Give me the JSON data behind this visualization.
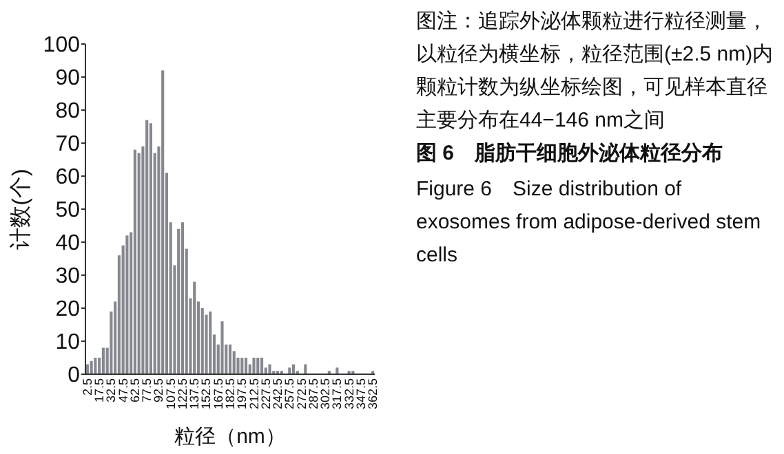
{
  "chart_data": {
    "type": "bar",
    "ylabel": "计数(个)",
    "xlabel": "粒径（nm）",
    "categories": [
      "2.5",
      null,
      null,
      "17.5",
      null,
      null,
      "32.5",
      null,
      null,
      "47.5",
      null,
      null,
      "62.5",
      null,
      null,
      "77.5",
      null,
      null,
      "92.5",
      null,
      null,
      "107.5",
      null,
      null,
      "122.5",
      null,
      null,
      "137.5",
      null,
      null,
      "152.5",
      null,
      null,
      "167.5",
      null,
      null,
      "182.5",
      null,
      null,
      "197.5",
      null,
      null,
      "212.5",
      null,
      null,
      "227.5",
      null,
      null,
      "242.5",
      null,
      null,
      "257.5",
      null,
      null,
      "272.5",
      null,
      null,
      "287.5",
      null,
      null,
      "302.5",
      null,
      null,
      "317.5",
      null,
      null,
      "332.5",
      null,
      null,
      "347.5",
      null,
      null,
      "362.5"
    ],
    "values": [
      3,
      4,
      5,
      5,
      8,
      8,
      19,
      22,
      36,
      39,
      42,
      43,
      68,
      67,
      69,
      77,
      76,
      67,
      69,
      92,
      61,
      46,
      33,
      44,
      46,
      38,
      23,
      28,
      22,
      20,
      18,
      19,
      12,
      9,
      16,
      9,
      9,
      7,
      5,
      5,
      5,
      3,
      5,
      5,
      5,
      2,
      3,
      1,
      1,
      1,
      0,
      2,
      3,
      1,
      0,
      3,
      0,
      0,
      0,
      0,
      0,
      1,
      0,
      2,
      0,
      0,
      1,
      1,
      0,
      0,
      0,
      0,
      1
    ],
    "color": "#85888f",
    "ylim": [
      0,
      100
    ],
    "yticks": [
      0,
      10,
      20,
      30,
      40,
      50,
      60,
      70,
      80,
      90,
      100
    ],
    "grid": false,
    "annotations": [
      "图注：追踪外泌体颗粒进行粒径测量，以粒径为横坐标，粒径范围(±2.5 nm)内颗粒计数为纵坐标绘图，可见样本直径主要分布在44−146 nm之间",
      "图 6　脂肪干细胞外泌体粒径分布",
      "Figure 6　Size distribution of exosomes from adipose-derived stem cells"
    ]
  }
}
